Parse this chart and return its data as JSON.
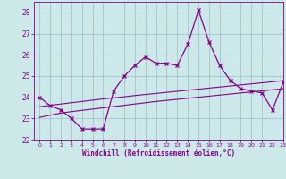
{
  "hours": [
    0,
    1,
    2,
    3,
    4,
    5,
    6,
    7,
    8,
    9,
    10,
    11,
    12,
    13,
    14,
    15,
    16,
    17,
    18,
    19,
    20,
    21,
    22,
    23
  ],
  "windchill": [
    24.0,
    23.6,
    23.4,
    23.0,
    22.5,
    22.5,
    22.5,
    24.3,
    25.0,
    25.5,
    25.9,
    25.6,
    25.6,
    25.5,
    26.5,
    28.1,
    26.6,
    25.5,
    24.8,
    24.4,
    24.3,
    24.2,
    23.4,
    24.7
  ],
  "linear_low": [
    23.05,
    23.15,
    23.25,
    23.32,
    23.38,
    23.44,
    23.5,
    23.56,
    23.62,
    23.68,
    23.74,
    23.8,
    23.85,
    23.9,
    23.95,
    24.0,
    24.05,
    24.1,
    24.15,
    24.2,
    24.25,
    24.3,
    24.35,
    24.4
  ],
  "linear_high": [
    23.55,
    23.62,
    23.68,
    23.74,
    23.8,
    23.86,
    23.92,
    23.97,
    24.02,
    24.08,
    24.13,
    24.18,
    24.23,
    24.28,
    24.33,
    24.38,
    24.43,
    24.48,
    24.53,
    24.58,
    24.63,
    24.68,
    24.73,
    24.78
  ],
  "line_color": "#880088",
  "bg_color": "#cce8e8",
  "grid_color": "#99bbcc",
  "xlabel": "Windchill (Refroidissement éolien,°C)",
  "ylim": [
    22,
    28.5
  ],
  "xlim": [
    -0.5,
    23
  ],
  "yticks": [
    22,
    23,
    24,
    25,
    26,
    27,
    28
  ],
  "xticks": [
    0,
    1,
    2,
    3,
    4,
    5,
    6,
    7,
    8,
    9,
    10,
    11,
    12,
    13,
    14,
    15,
    16,
    17,
    18,
    19,
    20,
    21,
    22,
    23
  ]
}
